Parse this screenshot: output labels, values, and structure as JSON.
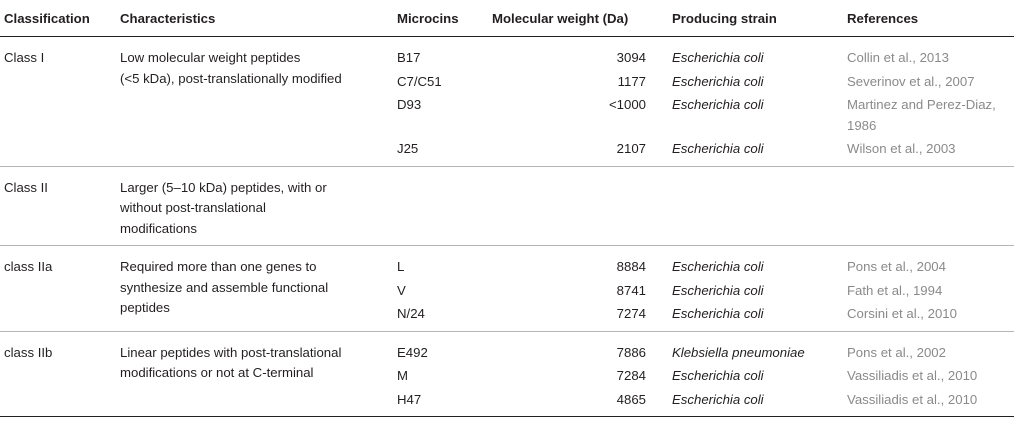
{
  "headers": {
    "classification": "Classification",
    "characteristics": "Characteristics",
    "microcins": "Microcins",
    "molecular_weight": "Molecular weight (Da)",
    "producing_strain": "Producing strain",
    "references": "References"
  },
  "groups": [
    {
      "classification": "Class I",
      "characteristics": [
        "Low molecular weight peptides",
        "(<5 kDa), post-translationally modified"
      ],
      "rows": [
        {
          "microcin": "B17",
          "mw": "3094",
          "strain": "Escherichia coli",
          "ref": [
            "Collin et al., 2013"
          ]
        },
        {
          "microcin": "C7/C51",
          "mw": "1177",
          "strain": "Escherichia coli",
          "ref": [
            "Severinov et al., 2007"
          ]
        },
        {
          "microcin": "D93",
          "mw": "<1000",
          "strain": "Escherichia coli",
          "ref": [
            "Martinez and Perez-Diaz,",
            "1986"
          ]
        },
        {
          "microcin": "J25",
          "mw": "2107",
          "strain": "Escherichia coli",
          "ref": [
            "Wilson et al., 2003"
          ]
        }
      ]
    },
    {
      "classification": "Class II",
      "characteristics": [
        "Larger (5–10 kDa) peptides, with or",
        "without post-translational",
        "modifications"
      ],
      "rows": []
    },
    {
      "classification": "class IIa",
      "characteristics": [
        "Required more than one genes to",
        "synthesize and assemble functional",
        "peptides"
      ],
      "rows": [
        {
          "microcin": "L",
          "mw": "8884",
          "strain": "Escherichia coli",
          "ref": [
            "Pons et al., 2004"
          ]
        },
        {
          "microcin": "V",
          "mw": "8741",
          "strain": "Escherichia coli",
          "ref": [
            "Fath et al., 1994"
          ]
        },
        {
          "microcin": "N/24",
          "mw": "7274",
          "strain": "Escherichia coli",
          "ref": [
            "Corsini et al., 2010"
          ]
        }
      ]
    },
    {
      "classification": "class IIb",
      "characteristics": [
        "Linear peptides with post-translational",
        "modifications or not at C-terminal"
      ],
      "rows": [
        {
          "microcin": "E492",
          "mw": "7886",
          "strain": "Klebsiella pneumoniae",
          "ref": [
            "Pons et al., 2002"
          ]
        },
        {
          "microcin": "M",
          "mw": "7284",
          "strain": "Escherichia coli",
          "ref": [
            "Vassiliadis et al., 2010"
          ]
        },
        {
          "microcin": "H47",
          "mw": "4865",
          "strain": "Escherichia coli",
          "ref": [
            "Vassiliadis et al., 2010"
          ]
        }
      ]
    }
  ]
}
